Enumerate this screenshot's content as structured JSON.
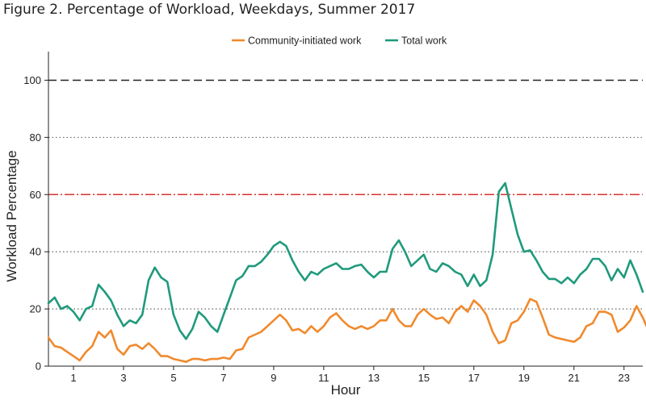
{
  "figure_title": "Figure 2. Percentage of Workload, Weekdays, Summer 2017",
  "chart_data": {
    "type": "line",
    "title": "Figure 2. Percentage of Workload, Weekdays, Summer 2017",
    "xlabel": "Hour",
    "ylabel": "Workload Percentage",
    "xlim": [
      0,
      23.75
    ],
    "ylim": [
      0,
      110
    ],
    "x_ticks": [
      1,
      3,
      5,
      7,
      9,
      11,
      13,
      15,
      17,
      19,
      21,
      23
    ],
    "y_ticks": [
      0,
      20,
      40,
      60,
      80,
      100
    ],
    "grid": "horizontal dotted at 20, 40, 80",
    "legend_position": "top-center",
    "reference_lines": [
      {
        "y": 100,
        "style": "dashed",
        "color": "#222222"
      },
      {
        "y": 60,
        "style": "dashed",
        "color": "#d93030"
      }
    ],
    "x_step": 0.25,
    "series": [
      {
        "name": "Community-initiated work",
        "color": "#f08a2e",
        "values": [
          10,
          7,
          6.5,
          5,
          3.5,
          2,
          5,
          7,
          12,
          10,
          12.5,
          6,
          4,
          7,
          7.5,
          6,
          8,
          6,
          3.5,
          3.5,
          2.5,
          2,
          1.5,
          2.5,
          2.5,
          2,
          2.5,
          2.5,
          3,
          2.5,
          5.5,
          6,
          10,
          11,
          12,
          14,
          16,
          18,
          16,
          12.5,
          13,
          11.5,
          14,
          12,
          14,
          17,
          18.5,
          16,
          14,
          13,
          14,
          13,
          14,
          16,
          16,
          20,
          16,
          14,
          14,
          18,
          20,
          18,
          16.5,
          17,
          15,
          19,
          21,
          19,
          23,
          21,
          18,
          12,
          8,
          9,
          15,
          16,
          19,
          23.5,
          22.5,
          17,
          11,
          10,
          9.5,
          9,
          8.5,
          10,
          14,
          15,
          19,
          19,
          18,
          12,
          13.5,
          16,
          21,
          17,
          12
        ]
      },
      {
        "name": "Total work",
        "color": "#1f9a7c",
        "values": [
          22,
          24,
          20,
          21,
          19,
          16,
          20,
          21,
          28.5,
          26,
          23,
          18,
          14,
          16,
          15,
          18,
          30,
          34.5,
          31,
          29.5,
          18,
          12.5,
          9.5,
          13,
          19,
          17,
          14,
          12,
          18,
          24,
          30,
          31.5,
          35,
          35,
          36.5,
          39,
          42,
          43.5,
          42,
          37,
          33,
          30,
          33,
          32,
          34,
          35,
          36,
          34,
          34,
          35,
          35.5,
          33,
          31,
          33,
          33,
          41,
          44,
          40,
          35,
          37,
          39,
          34,
          33,
          36,
          35,
          33,
          32,
          28,
          32,
          28,
          30,
          39,
          61,
          64,
          55,
          46,
          40,
          40.5,
          37,
          33,
          30.5,
          30.5,
          29,
          31,
          29,
          32,
          34,
          37.5,
          37.5,
          35,
          30,
          34,
          31,
          37,
          32,
          26
        ]
      }
    ]
  }
}
